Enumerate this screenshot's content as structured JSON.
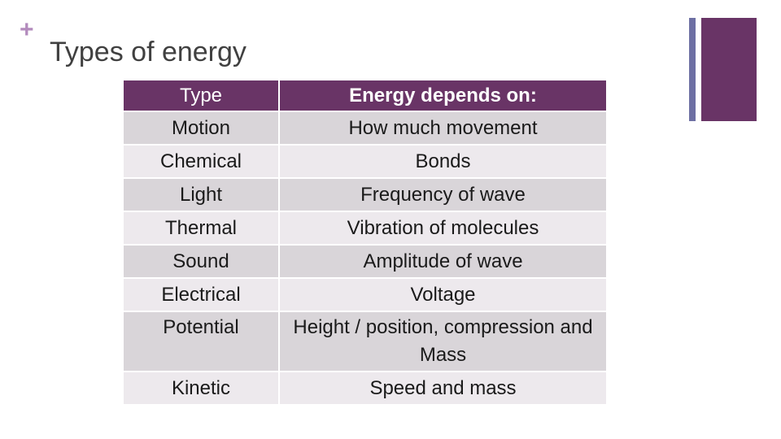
{
  "slide": {
    "plus_mark": "+",
    "title": "Types of energy"
  },
  "colors": {
    "header_bg": "#693466",
    "row_dark": "#d9d5d9",
    "row_light": "#ede9ed",
    "accent_line": "#6d6fa3",
    "accent_block": "#693466",
    "plus": "#b38bbd"
  },
  "table": {
    "headers": [
      "Type",
      "Energy depends on:"
    ],
    "rows": [
      [
        "Motion",
        "How much movement"
      ],
      [
        "Chemical",
        "Bonds"
      ],
      [
        "Light",
        "Frequency of wave"
      ],
      [
        "Thermal",
        "Vibration of molecules"
      ],
      [
        "Sound",
        "Amplitude of wave"
      ],
      [
        "Electrical",
        "Voltage"
      ],
      [
        "Potential",
        "Height / position, compression and Mass"
      ],
      [
        "Kinetic",
        "Speed and mass"
      ]
    ]
  }
}
